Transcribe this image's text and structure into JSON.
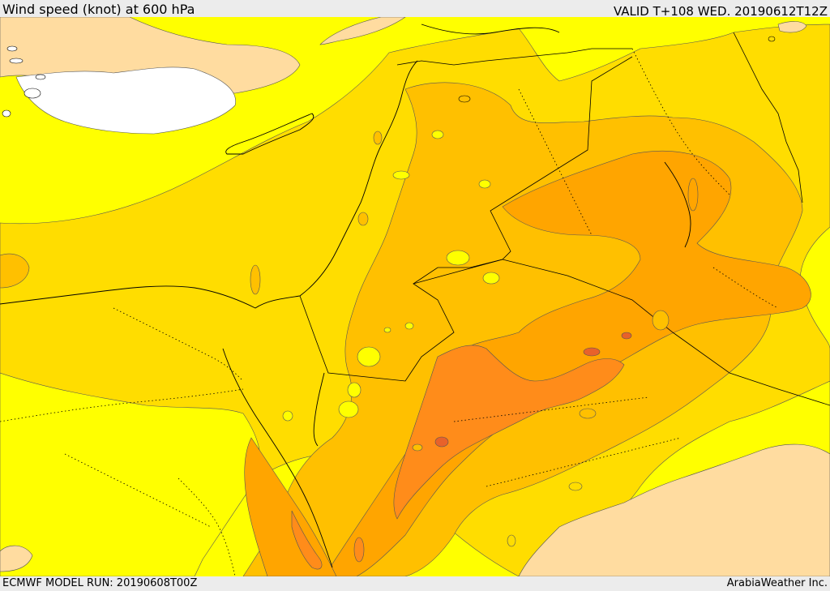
{
  "header": {
    "title": "Wind speed (knot) at 600 hPa",
    "valid": "VALID T+108 WED. 20190612T12Z"
  },
  "footer": {
    "model_run": "ECMWF MODEL RUN: 20190608T00Z",
    "credit": "ArabiaWeather Inc."
  },
  "colors": {
    "band_lowest": "#ffffff",
    "band_low": "#ffdca0",
    "band_yellow": "#ffff00",
    "band_gold": "#ffdd00",
    "band_amber": "#ffc000",
    "band_orange": "#ffa500",
    "band_dark_orange": "#ff8c1a",
    "band_highest": "#e8622a",
    "border_line": "#000000",
    "contour_line": "#555555"
  },
  "icons": {
    "map": "wind-speed-map"
  }
}
